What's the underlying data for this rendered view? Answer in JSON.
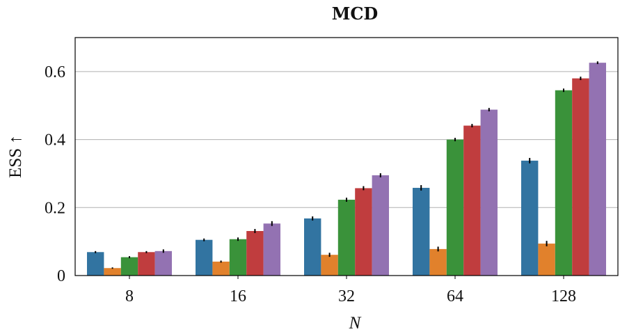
{
  "chart_data": {
    "type": "bar",
    "title": "MCD",
    "xlabel": "N",
    "ylabel": "ESS ↑",
    "categories": [
      "8",
      "16",
      "32",
      "64",
      "128"
    ],
    "ylim": [
      0,
      0.7
    ],
    "yticks": [
      0,
      0.2,
      0.4,
      0.6
    ],
    "ytick_labels": [
      "0",
      "0.2",
      "0.4",
      "0.6"
    ],
    "grid": "horizontal",
    "series": [
      {
        "color": "#3274a1",
        "values": [
          0.069,
          0.105,
          0.168,
          0.258,
          0.338
        ],
        "errors": [
          0.003,
          0.004,
          0.006,
          0.008,
          0.008
        ]
      },
      {
        "color": "#e1812c",
        "values": [
          0.022,
          0.041,
          0.061,
          0.078,
          0.094
        ],
        "errors": [
          0.002,
          0.003,
          0.006,
          0.007,
          0.008
        ]
      },
      {
        "color": "#3a923a",
        "values": [
          0.054,
          0.107,
          0.223,
          0.4,
          0.545
        ],
        "errors": [
          0.003,
          0.005,
          0.006,
          0.005,
          0.005
        ]
      },
      {
        "color": "#c03d3e",
        "values": [
          0.069,
          0.131,
          0.257,
          0.441,
          0.58
        ],
        "errors": [
          0.003,
          0.006,
          0.006,
          0.005,
          0.005
        ]
      },
      {
        "color": "#9372b2",
        "values": [
          0.072,
          0.153,
          0.295,
          0.488,
          0.626
        ],
        "errors": [
          0.005,
          0.007,
          0.006,
          0.005,
          0.004
        ]
      }
    ]
  }
}
